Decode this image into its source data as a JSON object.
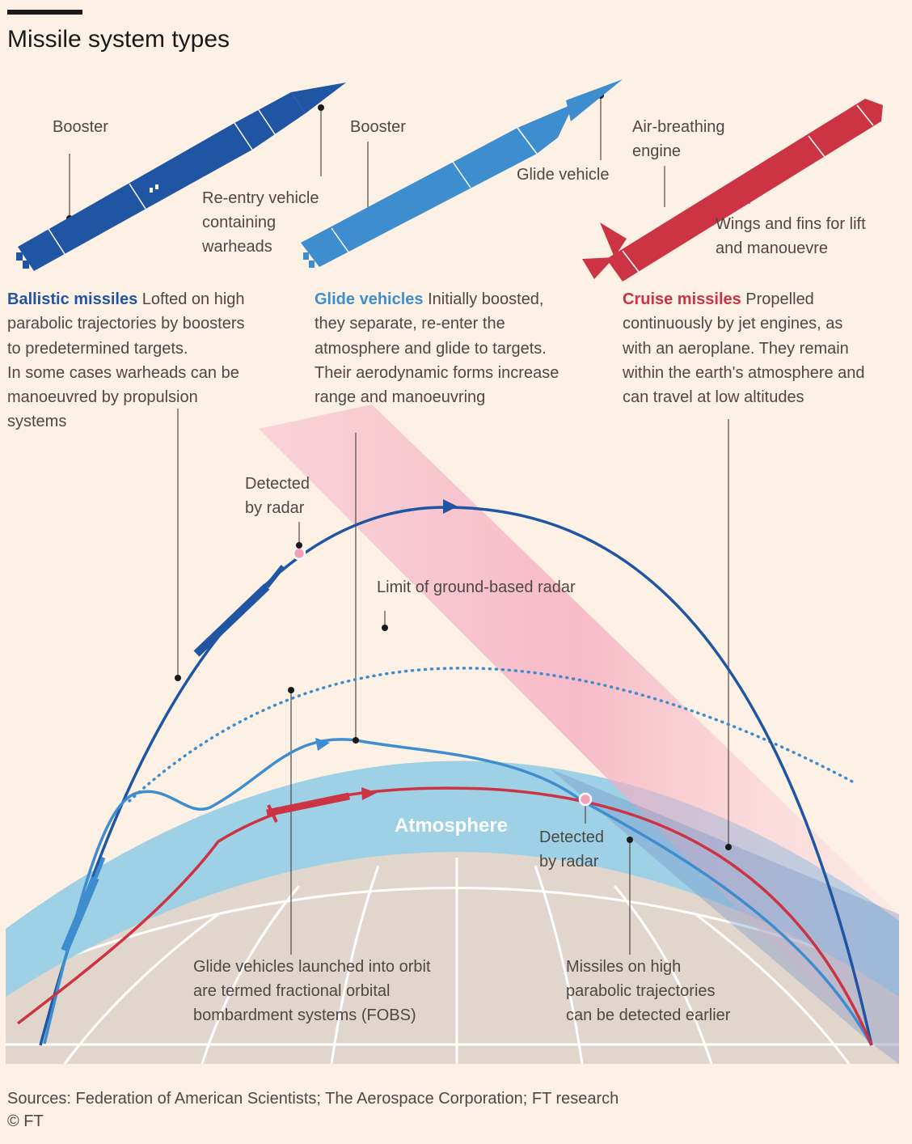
{
  "title": "Missile system types",
  "colors": {
    "background": "#fdf1e5",
    "ballistic": "#1f55a3",
    "glide": "#3e8ecf",
    "cruise": "#cc3343",
    "atmosphere": "#9ed0e6",
    "earth": "#e0d6cc",
    "radar": "#f5b8c8"
  },
  "labels": {
    "ballistic_booster": "Booster",
    "reentry_line1": "Re-entry vehicle",
    "reentry_line2": "containing",
    "reentry_line3": "warheads",
    "glide_booster": "Booster",
    "glide_vehicle": "Glide vehicle",
    "airbreathing_line1": "Air-breathing",
    "airbreathing_line2": "engine",
    "wings_line1": "Wings and fins for lift",
    "wings_line2": "and manouevre"
  },
  "descriptions": {
    "ballistic": {
      "heading": "Ballistic missiles",
      "text_line1": " Lofted on high",
      "text_lines": [
        "parabolic trajectories by boosters",
        "to predetermined targets.",
        "In some cases warheads can be",
        "manoeuvred by propulsion",
        "systems"
      ]
    },
    "glide": {
      "heading": "Glide vehicles",
      "text_line1": " Initially boosted,",
      "text_lines": [
        "they separate, re-enter the",
        "atmosphere and glide to targets.",
        "Their aerodynamic forms increase",
        "range and manoeuvring"
      ]
    },
    "cruise": {
      "heading": "Cruise missiles",
      "text_line1": " Propelled",
      "text_lines": [
        "continuously by jet engines, as",
        "with an aeroplane. They remain",
        "within the earth's atmosphere and",
        "can travel at low altitudes"
      ]
    }
  },
  "annotations": {
    "detected_top_line1": "Detected",
    "detected_top_line2": "by radar",
    "radar_limit": "Limit of ground-based radar",
    "atmosphere": "Atmosphere",
    "detected_low_line1": "Detected",
    "detected_low_line2": "by radar",
    "fobs_lines": [
      "Glide vehicles launched into orbit",
      "are termed fractional orbital",
      "bombardment systems (FOBS)"
    ],
    "parabolic_lines": [
      "Missiles on high",
      "parabolic trajectories",
      "can be detected earlier"
    ]
  },
  "footer": {
    "sources": "Sources: Federation of American Scientists; The Aerospace Corporation; FT research",
    "copyright": "© FT"
  }
}
